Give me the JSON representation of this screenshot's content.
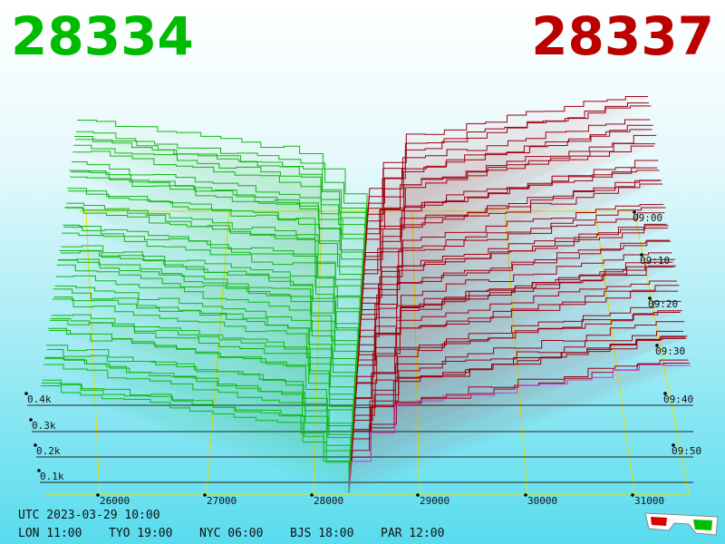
{
  "header": {
    "bid": "28334",
    "ask": "28337"
  },
  "price_labels": [
    "26000",
    "27000",
    "28000",
    "29000",
    "30000",
    "31000"
  ],
  "depth_labels": [
    "0.4k",
    "0.3k",
    "0.2k",
    "0.1k"
  ],
  "time_labels": [
    "09:00",
    "09:10",
    "09:20",
    "09:30",
    "09:40",
    "09:50"
  ],
  "footer": {
    "utc": "UTC 2023-03-29 10:00",
    "cities": [
      "LON 11:00",
      "TYO 19:00",
      "NYC 06:00",
      "BJS 18:00",
      "PAR 12:00"
    ]
  }
}
